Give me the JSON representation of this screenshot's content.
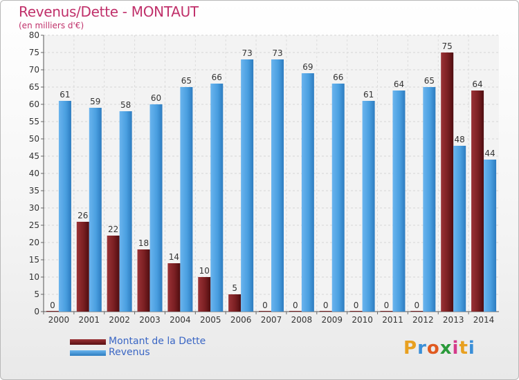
{
  "header": {
    "title": "Revenus/Dette - MONTAUT",
    "subtitle": "(en milliers d'€)"
  },
  "chart_data": {
    "type": "bar",
    "categories": [
      "2000",
      "2001",
      "2002",
      "2003",
      "2004",
      "2005",
      "2006",
      "2007",
      "2008",
      "2009",
      "2010",
      "2011",
      "2012",
      "2013",
      "2014"
    ],
    "series": [
      {
        "name": "Montant de la Dette",
        "color": "#7a1f22",
        "values": [
          0,
          26,
          22,
          18,
          14,
          10,
          5,
          0,
          0,
          0,
          0,
          0,
          0,
          75,
          64
        ]
      },
      {
        "name": "Revenus",
        "color": "#4a9fe0",
        "values": [
          61,
          59,
          58,
          60,
          65,
          66,
          73,
          73,
          69,
          66,
          61,
          64,
          65,
          48,
          44
        ]
      }
    ],
    "ylim": [
      0,
      80
    ],
    "ytick_step": 5,
    "grid": true,
    "legend": "bottom-left"
  },
  "legend": {
    "items": [
      {
        "label": "Montant de la Dette",
        "color": "#7a1f22"
      },
      {
        "label": "Revenus",
        "color": "#4a9fe0"
      }
    ]
  },
  "logo": {
    "letters": [
      "P",
      "r",
      "o",
      "x",
      "i",
      "t",
      "i"
    ],
    "colors": [
      "#e8a020",
      "#3a8fd8",
      "#e05a20",
      "#2a9a3a",
      "#d43a8a",
      "#e8a020",
      "#3a8fd8"
    ]
  }
}
